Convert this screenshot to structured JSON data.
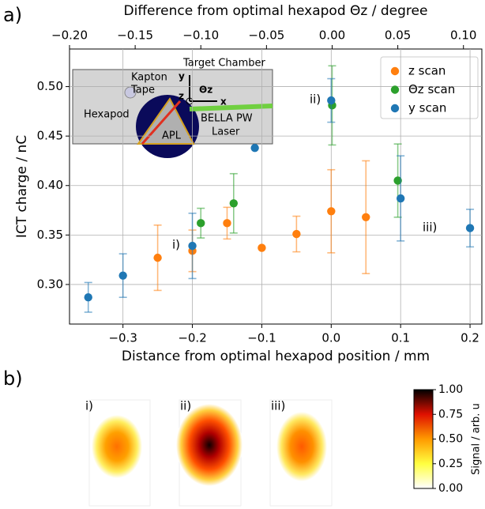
{
  "chart_data": [
    {
      "type": "errorbar-scatter",
      "panel_label": "a)",
      "xlabel": "Distance from optimal hexapod position / mm",
      "x2label": "Difference from optimal hexapod Θz / degree",
      "ylabel": "ICT charge / nC",
      "xlim": [
        -0.377,
        0.217
      ],
      "xticks": [
        {
          "value": -0.3,
          "label": "−0.3"
        },
        {
          "value": -0.2,
          "label": "−0.2"
        },
        {
          "value": -0.1,
          "label": "−0.1"
        },
        {
          "value": 0,
          "label": "0.0"
        },
        {
          "value": 0.1,
          "label": "0.1"
        },
        {
          "value": 0.2,
          "label": "0.2"
        }
      ],
      "x2lim": [
        -0.2,
        0.114
      ],
      "x2ticks": [
        {
          "value": -0.2,
          "label": "−0.20"
        },
        {
          "value": -0.15,
          "label": "−0.15"
        },
        {
          "value": -0.1,
          "label": "−0.10"
        },
        {
          "value": -0.05,
          "label": "−0.05"
        },
        {
          "value": 0,
          "label": "0.00"
        },
        {
          "value": 0.05,
          "label": "0.05"
        },
        {
          "value": 0.1,
          "label": "0.10"
        }
      ],
      "ylim": [
        0.26,
        0.538
      ],
      "yticks": [
        {
          "value": 0.3,
          "label": "0.30"
        },
        {
          "value": 0.35,
          "label": "0.35"
        },
        {
          "value": 0.4,
          "label": "0.40"
        },
        {
          "value": 0.45,
          "label": "0.45"
        },
        {
          "value": 0.5,
          "label": "0.50"
        }
      ],
      "grid": true,
      "legend": "upper right",
      "series": [
        {
          "name": "z scan",
          "color": "#ff7f0e",
          "axis": "x",
          "x": [
            -0.25,
            -0.2,
            -0.15,
            -0.1,
            -0.05,
            0,
            0.05
          ],
          "values": [
            0.327,
            0.334,
            0.362,
            0.337,
            0.351,
            0.374,
            0.368
          ],
          "errors": [
            0.033,
            0.021,
            0.016,
            null,
            0.018,
            0.042,
            0.057
          ]
        },
        {
          "name": "Θz scan",
          "color": "#2ca02c",
          "axis": "x2",
          "x": [
            -0.1,
            -0.075,
            0,
            0.05
          ],
          "values": [
            0.362,
            0.382,
            0.481,
            0.405
          ],
          "errors": [
            0.015,
            0.03,
            0.04,
            0.037
          ]
        },
        {
          "name": "y scan",
          "color": "#1f77b4",
          "axis": "x",
          "x": [
            -0.35,
            -0.3,
            -0.2,
            -0.11,
            0,
            0.1,
            0.2
          ],
          "values": [
            0.287,
            0.309,
            0.339,
            0.438,
            0.486,
            0.387,
            0.357
          ],
          "errors": [
            0.015,
            0.022,
            0.033,
            null,
            0.022,
            0.043,
            0.019
          ]
        }
      ],
      "annotations": [
        "i)",
        "ii)",
        "iii)"
      ],
      "inset_labels": [
        "Target Chamber",
        "Kapton",
        "Tape",
        "Hexapod",
        "APL",
        "BELLA PW",
        "Laser",
        "y",
        "z",
        "x",
        "Θz"
      ]
    },
    {
      "type": "colorbar",
      "panel_label": "b)",
      "panels": [
        "i)",
        "ii)",
        "iii)"
      ],
      "ylabel": "Signal / arb. u",
      "ylim": [
        0,
        1
      ],
      "yticks": [
        {
          "value": 0,
          "label": "0.00"
        },
        {
          "value": 0.25,
          "label": "0.25"
        },
        {
          "value": 0.5,
          "label": "0.50"
        },
        {
          "value": 0.75,
          "label": "0.75"
        },
        {
          "value": 1,
          "label": "1.00"
        }
      ]
    }
  ]
}
